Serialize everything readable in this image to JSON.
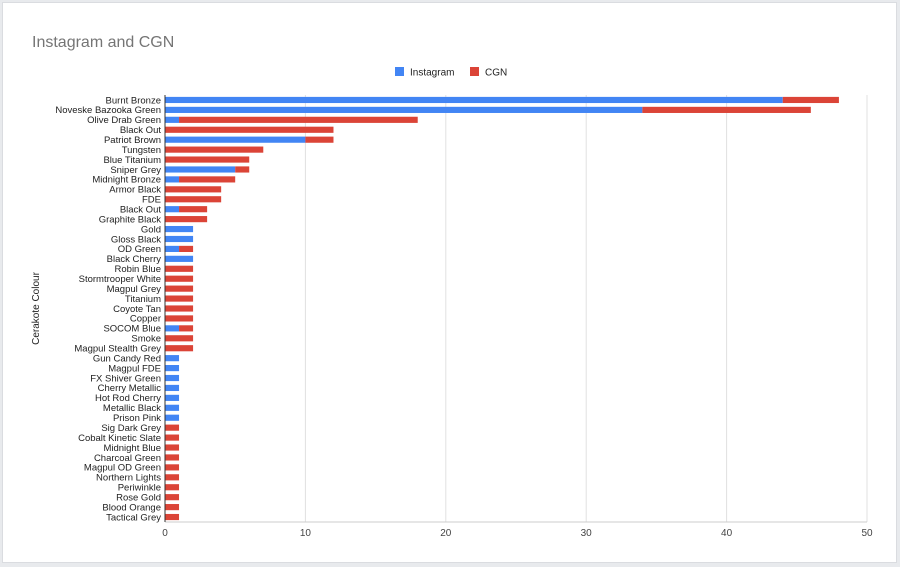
{
  "chart_data": {
    "type": "bar",
    "orientation": "horizontal",
    "stacked": true,
    "title": "Instagram and CGN",
    "ylabel": "Cerakote Colour",
    "xlabel": "",
    "xlim": [
      0,
      50
    ],
    "xticks": [
      0,
      10,
      20,
      30,
      40,
      50
    ],
    "grid": true,
    "legend_position": "top-center",
    "categories": [
      "Burnt Bronze",
      "Noveske Bazooka Green",
      "Olive Drab Green",
      "Black Out",
      "Patriot Brown",
      "Tungsten",
      "Blue Titanium",
      "Sniper Grey",
      "Midnight Bronze",
      "Armor Black",
      "FDE",
      "Black Out",
      "Graphite Black",
      "Gold",
      "Gloss Black",
      "OD Green",
      "Black Cherry",
      "Robin Blue",
      "Stormtrooper White",
      "Magpul Grey",
      "Titanium",
      "Coyote Tan",
      "Copper",
      "SOCOM Blue",
      "Smoke",
      "Magpul Stealth Grey",
      "Gun Candy Red",
      "Magpul FDE",
      "FX Shiver Green",
      "Cherry Metallic",
      "Hot Rod Cherry",
      "Metallic Black",
      "Prison Pink",
      "Sig Dark Grey",
      "Cobalt Kinetic Slate",
      "Midnight Blue",
      "Charcoal Green",
      "Magpul OD Green",
      "Northern Lights",
      "Periwinkle",
      "Rose Gold",
      "Blood Orange",
      "Tactical Grey"
    ],
    "series": [
      {
        "name": "Instagram",
        "color": "#4285f4",
        "values": [
          44,
          34,
          1,
          0,
          10,
          0,
          0,
          5,
          1,
          0,
          0,
          1,
          0,
          2,
          2,
          1,
          2,
          0,
          0,
          0,
          0,
          0,
          0,
          1,
          0,
          0,
          1,
          1,
          1,
          1,
          1,
          1,
          1,
          0,
          0,
          0,
          0,
          0,
          0,
          0,
          0,
          0,
          0
        ]
      },
      {
        "name": "CGN",
        "color": "#db4437",
        "values": [
          4,
          12,
          17,
          12,
          2,
          7,
          6,
          1,
          4,
          4,
          4,
          2,
          3,
          0,
          0,
          1,
          0,
          2,
          2,
          2,
          2,
          2,
          2,
          1,
          2,
          2,
          0,
          0,
          0,
          0,
          0,
          0,
          0,
          1,
          1,
          1,
          1,
          1,
          1,
          1,
          1,
          1,
          1
        ]
      }
    ]
  }
}
